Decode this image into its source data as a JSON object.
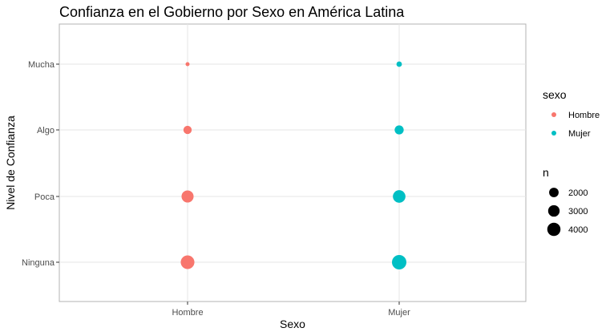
{
  "chart_data": {
    "type": "scatter",
    "title": "Confianza en el Gobierno por Sexo en América Latina",
    "xlabel": "Sexo",
    "ylabel": "Nivel de Confianza",
    "x_categories": [
      "Hombre",
      "Mujer"
    ],
    "y_categories": [
      "Ninguna",
      "Poca",
      "Algo",
      "Mucha"
    ],
    "grid": true,
    "legend_position": "right",
    "color_legend": {
      "title": "sexo",
      "entries": [
        {
          "label": "Hombre",
          "color": "#F8766D"
        },
        {
          "label": "Mujer",
          "color": "#00BFC4"
        }
      ]
    },
    "size_legend": {
      "title": "n",
      "entries": [
        {
          "label": "2000",
          "value": 2000
        },
        {
          "label": "3000",
          "value": 3000
        },
        {
          "label": "4000",
          "value": 4000
        }
      ]
    },
    "points": [
      {
        "sexo": "Hombre",
        "nivel": "Mucha",
        "n": 300
      },
      {
        "sexo": "Hombre",
        "nivel": "Algo",
        "n": 1500
      },
      {
        "sexo": "Hombre",
        "nivel": "Poca",
        "n": 3300
      },
      {
        "sexo": "Hombre",
        "nivel": "Ninguna",
        "n": 4300
      },
      {
        "sexo": "Mujer",
        "nivel": "Mucha",
        "n": 600
      },
      {
        "sexo": "Mujer",
        "nivel": "Algo",
        "n": 1800
      },
      {
        "sexo": "Mujer",
        "nivel": "Poca",
        "n": 3600
      },
      {
        "sexo": "Mujer",
        "nivel": "Ninguna",
        "n": 4800
      }
    ]
  }
}
